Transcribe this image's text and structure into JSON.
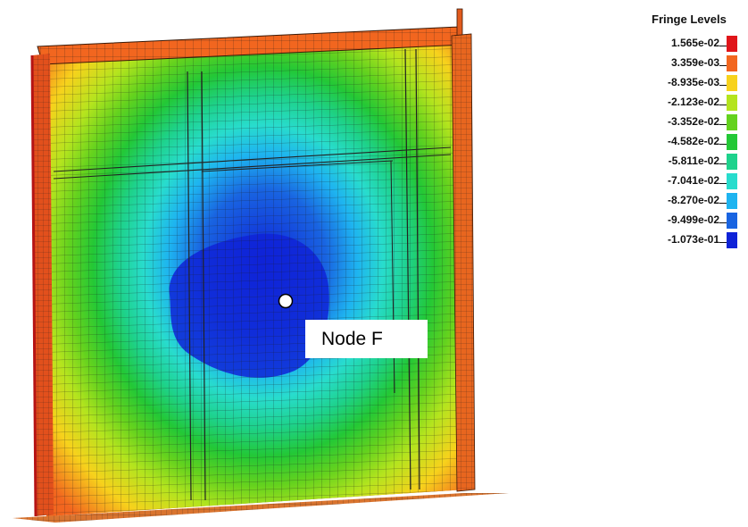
{
  "legend": {
    "title": "Fringe Levels",
    "levels": [
      {
        "label": "1.565e-02",
        "color": "#e0151a"
      },
      {
        "label": "3.359e-03",
        "color": "#f2661f"
      },
      {
        "label": "-8.935e-03",
        "color": "#f7d21c"
      },
      {
        "label": "-2.123e-02",
        "color": "#b4e41e"
      },
      {
        "label": "-3.352e-02",
        "color": "#64d21e"
      },
      {
        "label": "-4.582e-02",
        "color": "#23c836"
      },
      {
        "label": "-5.811e-02",
        "color": "#1ed28c"
      },
      {
        "label": "-7.041e-02",
        "color": "#28dccd"
      },
      {
        "label": "-8.270e-02",
        "color": "#1eb4f0"
      },
      {
        "label": "-9.499e-02",
        "color": "#1964e1"
      },
      {
        "label": "-1.073e-01",
        "color": "#0f23d7"
      }
    ]
  },
  "annotation": {
    "node_label": "Node F"
  }
}
